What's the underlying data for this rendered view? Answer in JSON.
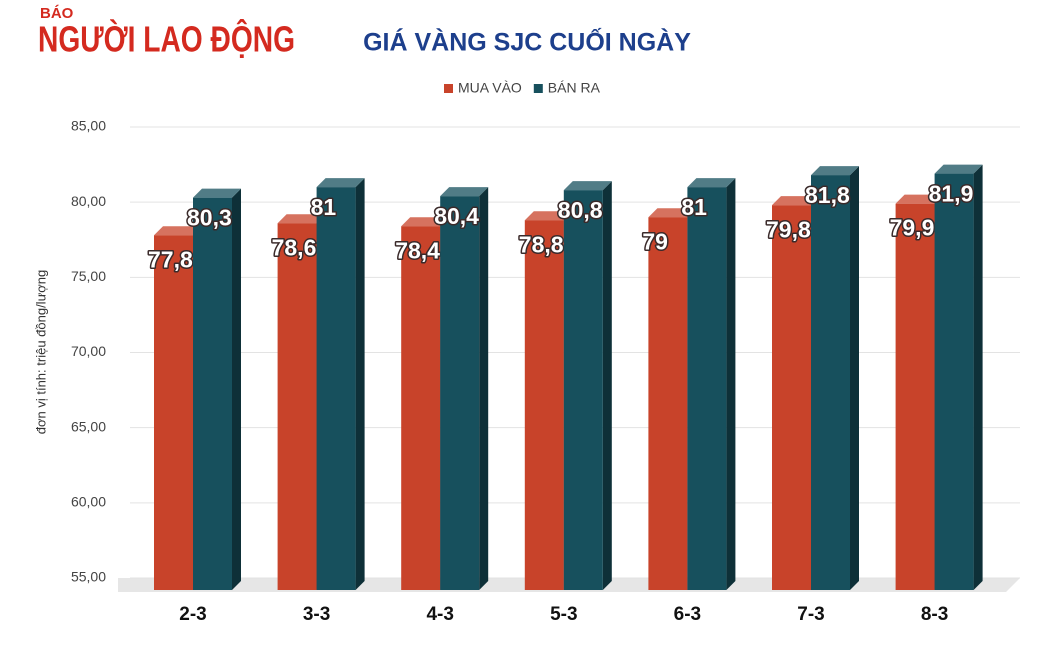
{
  "logo": {
    "small": "BÁO",
    "name": "NGƯỜI LAO ĐỘNG"
  },
  "chart_data": {
    "type": "bar",
    "title": "GIÁ VÀNG SJC CUỐI NGÀY",
    "y_label": "đơn vị tính: triệu đồng/lượng",
    "categories": [
      "2-3",
      "3-3",
      "4-3",
      "5-3",
      "6-3",
      "7-3",
      "8-3"
    ],
    "series": [
      {
        "name": "MUA VÀO",
        "color": "#c8432a",
        "values": [
          77.8,
          78.6,
          78.4,
          78.8,
          79,
          79.8,
          79.9
        ],
        "value_labels": [
          "77,8",
          "78,6",
          "78,4",
          "78,8",
          "79",
          "79,8",
          "79,9"
        ]
      },
      {
        "name": "BÁN RA",
        "color": "#17505d",
        "values": [
          80.3,
          81,
          80.4,
          80.8,
          81,
          81.8,
          81.9
        ],
        "value_labels": [
          "80,3",
          "81",
          "80,4",
          "80,8",
          "81",
          "81,8",
          "81,9"
        ]
      }
    ],
    "ylim": [
      55,
      85
    ],
    "yticks": [
      {
        "value": 55,
        "label": "55,00"
      },
      {
        "value": 60,
        "label": "60,00"
      },
      {
        "value": 65,
        "label": "65,00"
      },
      {
        "value": 70,
        "label": "70,00"
      },
      {
        "value": 75,
        "label": "75,00"
      },
      {
        "value": 80,
        "label": "80,00"
      },
      {
        "value": 85,
        "label": "85,00"
      }
    ],
    "grid": true,
    "legend": "top"
  }
}
